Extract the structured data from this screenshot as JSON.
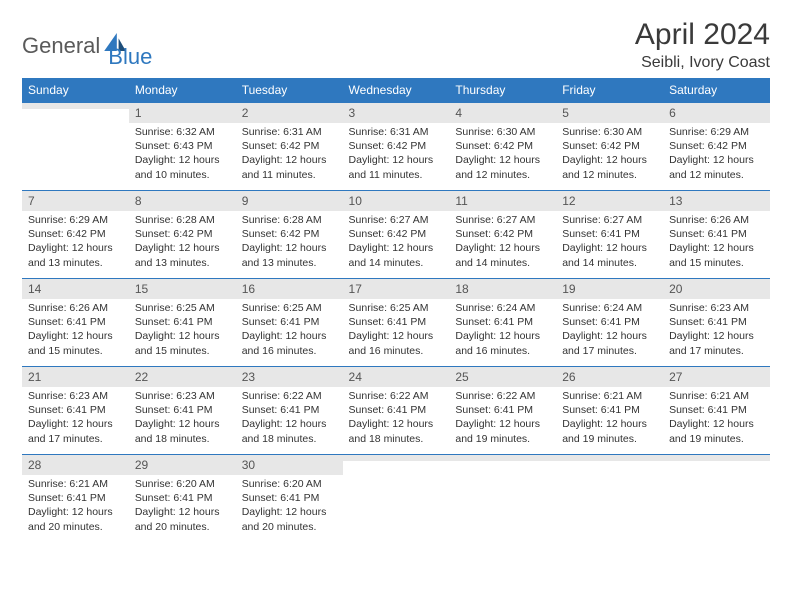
{
  "logo": {
    "part1": "General",
    "part2": "Blue"
  },
  "title": "April 2024",
  "location": "Seibli, Ivory Coast",
  "colors": {
    "header_bg": "#2f78bf",
    "header_fg": "#ffffff",
    "daynum_bg": "#e7e7e7",
    "border": "#2f78bf",
    "text": "#333333",
    "title_color": "#3a3a3a"
  },
  "day_headers": [
    "Sunday",
    "Monday",
    "Tuesday",
    "Wednesday",
    "Thursday",
    "Friday",
    "Saturday"
  ],
  "weeks": [
    [
      {
        "empty": true
      },
      {
        "n": "1",
        "sunrise": "6:32 AM",
        "sunset": "6:43 PM",
        "daylight": "12 hours and 10 minutes."
      },
      {
        "n": "2",
        "sunrise": "6:31 AM",
        "sunset": "6:42 PM",
        "daylight": "12 hours and 11 minutes."
      },
      {
        "n": "3",
        "sunrise": "6:31 AM",
        "sunset": "6:42 PM",
        "daylight": "12 hours and 11 minutes."
      },
      {
        "n": "4",
        "sunrise": "6:30 AM",
        "sunset": "6:42 PM",
        "daylight": "12 hours and 12 minutes."
      },
      {
        "n": "5",
        "sunrise": "6:30 AM",
        "sunset": "6:42 PM",
        "daylight": "12 hours and 12 minutes."
      },
      {
        "n": "6",
        "sunrise": "6:29 AM",
        "sunset": "6:42 PM",
        "daylight": "12 hours and 12 minutes."
      }
    ],
    [
      {
        "n": "7",
        "sunrise": "6:29 AM",
        "sunset": "6:42 PM",
        "daylight": "12 hours and 13 minutes."
      },
      {
        "n": "8",
        "sunrise": "6:28 AM",
        "sunset": "6:42 PM",
        "daylight": "12 hours and 13 minutes."
      },
      {
        "n": "9",
        "sunrise": "6:28 AM",
        "sunset": "6:42 PM",
        "daylight": "12 hours and 13 minutes."
      },
      {
        "n": "10",
        "sunrise": "6:27 AM",
        "sunset": "6:42 PM",
        "daylight": "12 hours and 14 minutes."
      },
      {
        "n": "11",
        "sunrise": "6:27 AM",
        "sunset": "6:42 PM",
        "daylight": "12 hours and 14 minutes."
      },
      {
        "n": "12",
        "sunrise": "6:27 AM",
        "sunset": "6:41 PM",
        "daylight": "12 hours and 14 minutes."
      },
      {
        "n": "13",
        "sunrise": "6:26 AM",
        "sunset": "6:41 PM",
        "daylight": "12 hours and 15 minutes."
      }
    ],
    [
      {
        "n": "14",
        "sunrise": "6:26 AM",
        "sunset": "6:41 PM",
        "daylight": "12 hours and 15 minutes."
      },
      {
        "n": "15",
        "sunrise": "6:25 AM",
        "sunset": "6:41 PM",
        "daylight": "12 hours and 15 minutes."
      },
      {
        "n": "16",
        "sunrise": "6:25 AM",
        "sunset": "6:41 PM",
        "daylight": "12 hours and 16 minutes."
      },
      {
        "n": "17",
        "sunrise": "6:25 AM",
        "sunset": "6:41 PM",
        "daylight": "12 hours and 16 minutes."
      },
      {
        "n": "18",
        "sunrise": "6:24 AM",
        "sunset": "6:41 PM",
        "daylight": "12 hours and 16 minutes."
      },
      {
        "n": "19",
        "sunrise": "6:24 AM",
        "sunset": "6:41 PM",
        "daylight": "12 hours and 17 minutes."
      },
      {
        "n": "20",
        "sunrise": "6:23 AM",
        "sunset": "6:41 PM",
        "daylight": "12 hours and 17 minutes."
      }
    ],
    [
      {
        "n": "21",
        "sunrise": "6:23 AM",
        "sunset": "6:41 PM",
        "daylight": "12 hours and 17 minutes."
      },
      {
        "n": "22",
        "sunrise": "6:23 AM",
        "sunset": "6:41 PM",
        "daylight": "12 hours and 18 minutes."
      },
      {
        "n": "23",
        "sunrise": "6:22 AM",
        "sunset": "6:41 PM",
        "daylight": "12 hours and 18 minutes."
      },
      {
        "n": "24",
        "sunrise": "6:22 AM",
        "sunset": "6:41 PM",
        "daylight": "12 hours and 18 minutes."
      },
      {
        "n": "25",
        "sunrise": "6:22 AM",
        "sunset": "6:41 PM",
        "daylight": "12 hours and 19 minutes."
      },
      {
        "n": "26",
        "sunrise": "6:21 AM",
        "sunset": "6:41 PM",
        "daylight": "12 hours and 19 minutes."
      },
      {
        "n": "27",
        "sunrise": "6:21 AM",
        "sunset": "6:41 PM",
        "daylight": "12 hours and 19 minutes."
      }
    ],
    [
      {
        "n": "28",
        "sunrise": "6:21 AM",
        "sunset": "6:41 PM",
        "daylight": "12 hours and 20 minutes."
      },
      {
        "n": "29",
        "sunrise": "6:20 AM",
        "sunset": "6:41 PM",
        "daylight": "12 hours and 20 minutes."
      },
      {
        "n": "30",
        "sunrise": "6:20 AM",
        "sunset": "6:41 PM",
        "daylight": "12 hours and 20 minutes."
      },
      {
        "empty": true
      },
      {
        "empty": true
      },
      {
        "empty": true
      },
      {
        "empty": true
      }
    ]
  ],
  "labels": {
    "sunrise": "Sunrise:",
    "sunset": "Sunset:",
    "daylight": "Daylight:"
  }
}
